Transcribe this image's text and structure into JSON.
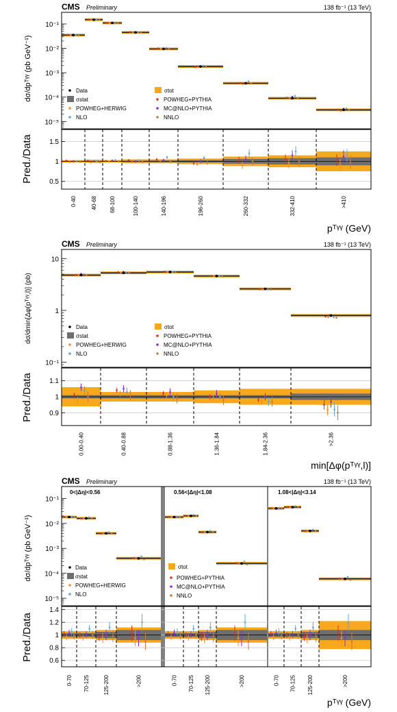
{
  "colors": {
    "data": "#000000",
    "stat": "#6e6e6e",
    "total": "#f7a81b",
    "powheg_herwig": "#ff8c1a",
    "nlo": "#5fa8dc",
    "powheg_pythia": "#e03020",
    "mcatnlo_pythia": "#8a2be2",
    "nnlo": "#c87941"
  },
  "panels": [
    {
      "cms": "CMS",
      "preliminary": "Preliminary",
      "lumi": "138 fb⁻¹ (13 TeV)",
      "ylabel": "dσ/dpᵀᵞᵞ (pb GeV⁻¹)",
      "ratio_ylabel": "Pred./Data",
      "xlabel": "pᵀᵞᵞ (GeV)",
      "legend": [
        "Data",
        "σtot",
        "σstat",
        "POWHEG+PYTHIA",
        "POWHEG+HERWIG",
        "MC@NLO+PYTHIA",
        "NLO",
        "NNLO"
      ]
    },
    {
      "cms": "CMS",
      "preliminary": "Preliminary",
      "lumi": "138 fb⁻¹ (13 TeV)",
      "ylabel": "dσ/dmin[Δφ(pᵀᵞᵞ,l)] (pb)",
      "ratio_ylabel": "Pred./Data",
      "xlabel": "min[Δφ(pᵀᵞᵞ,l)]",
      "legend": [
        "Data",
        "σtot",
        "σstat",
        "POWHEG+PYTHIA",
        "POWHEG+HERWIG",
        "MC@NLO+PYTHIA",
        "NLO",
        "NNLO"
      ]
    },
    {
      "cms": "CMS",
      "preliminary": "Preliminary",
      "lumi": "138 fb⁻¹ (13 TeV)",
      "ylabel": "dσ/dpᵀᵞᵞ (pb GeV⁻¹)",
      "ratio_ylabel": "Pred./Data",
      "xlabel": "pᵀᵞᵞ (GeV)",
      "region_labels": [
        "0<|Δη|<0.56",
        "0.56<|Δη|<1.08",
        "1.08<|Δη|<3.14"
      ],
      "legend": [
        "Data",
        "σtot",
        "σstat",
        "POWHEG+PYTHIA",
        "POWHEG+HERWIG",
        "MC@NLO+PYTHIA",
        "NLO",
        "NNLO"
      ]
    }
  ],
  "chart_data": [
    {
      "type": "bar",
      "title": "",
      "ylabel": "dσ/dpᵀᵞᵞ (pb GeV⁻¹)",
      "xlabel": "pᵀᵞᵞ (GeV)",
      "ylog": true,
      "ylim": [
        5e-06,
        0.3
      ],
      "ratio_ylim": [
        0.3,
        1.8
      ],
      "ratio_ticks": [
        "0.5",
        "1",
        "1.5"
      ],
      "yticks": [
        "10⁻¹",
        "10⁻²",
        "10⁻³",
        "10⁻⁴",
        "10⁻⁵"
      ],
      "categories": [
        "0-40",
        "40-68",
        "68-100",
        "100-140",
        "140-196",
        "196-260",
        "260-332",
        "332-410",
        ">410"
      ],
      "values": [
        0.035,
        0.15,
        0.11,
        0.045,
        0.0095,
        0.0018,
        0.00037,
        9e-05,
        3e-05
      ],
      "stat_unc": [
        0.01,
        0.01,
        0.01,
        0.015,
        0.02,
        0.03,
        0.06,
        0.08,
        0.1
      ],
      "tot_unc": [
        0.03,
        0.04,
        0.03,
        0.05,
        0.05,
        0.07,
        0.12,
        0.15,
        0.25
      ],
      "predictions": [
        {
          "name": "POWHEG+PYTHIA",
          "ratios": [
            1.02,
            1.02,
            1.01,
            1.03,
            1.05,
            0.95,
            1.03,
            1.05,
            1.03
          ]
        },
        {
          "name": "POWHEG+HERWIG",
          "ratios": [
            0.98,
            0.97,
            0.99,
            0.98,
            1.02,
            0.93,
            0.9,
            0.95,
            0.9
          ]
        },
        {
          "name": "MC@NLO+PYTHIA",
          "ratios": [
            1.0,
            1.0,
            1.02,
            1.0,
            1.03,
            1.0,
            1.05,
            1.15,
            1.12
          ]
        },
        {
          "name": "NLO",
          "ratios": [
            1.0,
            1.01,
            1.03,
            1.02,
            1.1,
            1.08,
            1.2,
            1.25,
            1.15
          ]
        },
        {
          "name": "NNLO",
          "ratios": [
            0.99,
            0.98,
            1.0,
            0.99,
            1.0,
            0.97,
            1.0,
            1.0,
            0.98
          ]
        }
      ]
    },
    {
      "type": "bar",
      "title": "",
      "ylabel": "dσ/dmin[Δφ(pᵀᵞᵞ,l)] (pb)",
      "xlabel": "min[Δφ(pᵀᵞᵞ,l)]",
      "ylog": true,
      "ylim": [
        0.08,
        15
      ],
      "ratio_ylim": [
        0.82,
        1.18
      ],
      "ratio_ticks": [
        "0.9",
        "1",
        "1.1"
      ],
      "yticks": [
        "10",
        "1",
        "10⁻¹"
      ],
      "categories": [
        "0.00-0.40",
        "0.40-0.88",
        "0.88-1.36",
        "1.36-1.84",
        "1.84-2.36",
        ">2.36"
      ],
      "values": [
        4.8,
        5.3,
        5.5,
        4.6,
        2.6,
        0.8
      ],
      "stat_unc": [
        0.01,
        0.01,
        0.01,
        0.01,
        0.01,
        0.02
      ],
      "tot_unc": [
        0.06,
        0.03,
        0.03,
        0.04,
        0.05,
        0.05
      ],
      "predictions": [
        {
          "name": "POWHEG+PYTHIA",
          "ratios": [
            1.01,
            1.04,
            1.02,
            1.0,
            0.98,
            0.95
          ]
        },
        {
          "name": "POWHEG+HERWIG",
          "ratios": [
            0.98,
            1.02,
            1.01,
            0.99,
            0.97,
            0.92
          ]
        },
        {
          "name": "MC@NLO+PYTHIA",
          "ratios": [
            1.06,
            1.05,
            1.03,
            1.02,
            1.0,
            0.97
          ]
        },
        {
          "name": "NLO",
          "ratios": [
            1.04,
            1.03,
            1.0,
            1.0,
            0.97,
            0.92
          ]
        },
        {
          "name": "NNLO",
          "ratios": [
            1.0,
            1.01,
            0.99,
            0.98,
            0.97,
            0.9
          ]
        }
      ]
    },
    {
      "type": "bar",
      "title": "",
      "ylabel": "dσ/dpᵀᵞᵞ (pb GeV⁻¹)",
      "xlabel": "pᵀᵞᵞ (GeV)",
      "ylog": true,
      "ylim": [
        5e-06,
        0.3
      ],
      "ratio_ylim": [
        0.5,
        1.45
      ],
      "ratio_ticks": [
        "0.6",
        "0.8",
        "1",
        "1.2",
        "1.4"
      ],
      "yticks": [
        "10⁻¹",
        "10⁻²",
        "10⁻³",
        "10⁻⁴",
        "10⁻⁵"
      ],
      "categories": [
        "0-70",
        "70-125",
        "125-200",
        ">200"
      ],
      "regions": [
        {
          "label": "0<|Δη|<0.56",
          "values": [
            0.018,
            0.016,
            0.004,
            0.0004
          ]
        },
        {
          "label": "0.56<|Δη|<1.08",
          "values": [
            0.018,
            0.02,
            0.0045,
            0.00025
          ]
        },
        {
          "label": "1.08<|Δη|<3.14",
          "values": [
            0.04,
            0.045,
            0.005,
            6e-05
          ]
        }
      ],
      "stat_unc": [
        0.03,
        0.03,
        0.05,
        0.08
      ],
      "tot_unc": [
        0.06,
        0.06,
        0.08,
        0.12
      ],
      "tot_unc_last_region_last_bin": 0.22,
      "predictions": [
        {
          "name": "POWHEG+PYTHIA",
          "ratios": [
            1.02,
            1.0,
            0.98,
            1.03
          ]
        },
        {
          "name": "POWHEG+HERWIG",
          "ratios": [
            0.97,
            0.96,
            0.95,
            0.95
          ]
        },
        {
          "name": "MC@NLO+PYTHIA",
          "ratios": [
            1.03,
            1.01,
            1.0,
            0.95
          ]
        },
        {
          "name": "NLO",
          "ratios": [
            1.05,
            1.1,
            1.12,
            1.2
          ]
        },
        {
          "name": "NNLO",
          "ratios": [
            0.99,
            1.0,
            0.98,
            0.9
          ]
        }
      ]
    }
  ]
}
